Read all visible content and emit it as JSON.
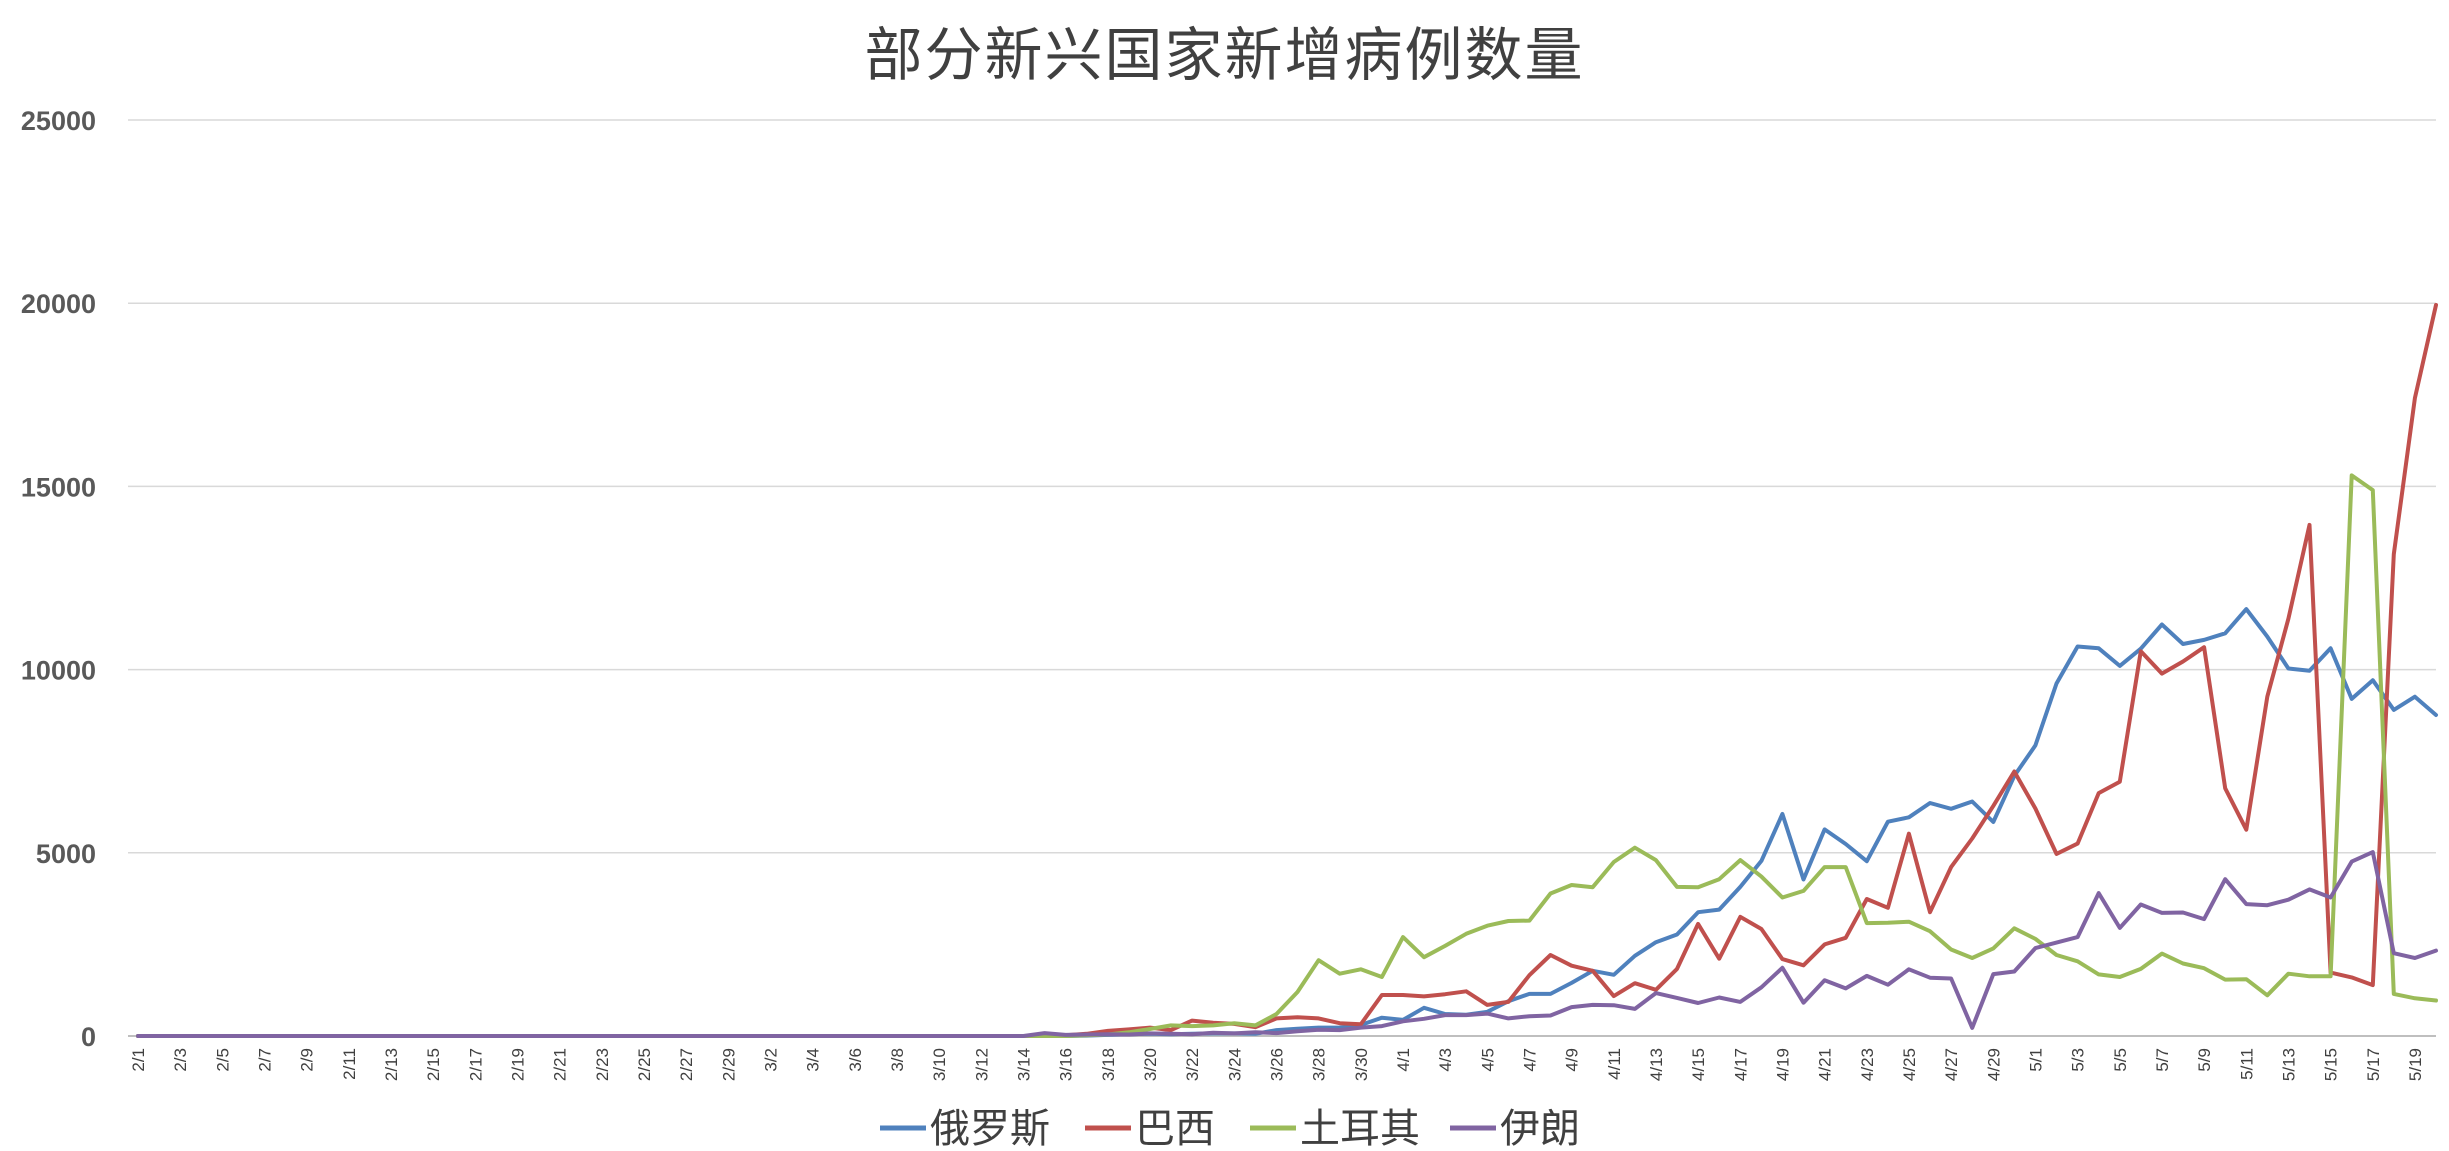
{
  "chart_data": {
    "type": "line",
    "title": "部分新兴国家新增病例数量",
    "xlabel": "",
    "ylabel": "",
    "ylim": [
      0,
      25000
    ],
    "yticks": [
      0,
      5000,
      10000,
      15000,
      20000,
      25000
    ],
    "grid": true,
    "legend": "bottom",
    "x": [
      "2/1",
      "2/2",
      "2/3",
      "2/4",
      "2/5",
      "2/6",
      "2/7",
      "2/8",
      "2/9",
      "2/10",
      "2/11",
      "2/12",
      "2/13",
      "2/14",
      "2/15",
      "2/16",
      "2/17",
      "2/18",
      "2/19",
      "2/20",
      "2/21",
      "2/22",
      "2/23",
      "2/24",
      "2/25",
      "2/26",
      "2/27",
      "2/28",
      "2/29",
      "3/1",
      "3/2",
      "3/3",
      "3/4",
      "3/5",
      "3/6",
      "3/7",
      "3/8",
      "3/9",
      "3/10",
      "3/11",
      "3/12",
      "3/13",
      "3/14",
      "3/15",
      "3/16",
      "3/17",
      "3/18",
      "3/19",
      "3/20",
      "3/21",
      "3/22",
      "3/23",
      "3/24",
      "3/25",
      "3/26",
      "3/27",
      "3/28",
      "3/29",
      "3/30",
      "3/31",
      "4/1",
      "4/2",
      "4/3",
      "4/4",
      "4/5",
      "4/6",
      "4/7",
      "4/8",
      "4/9",
      "4/10",
      "4/11",
      "4/12",
      "4/13",
      "4/14",
      "4/15",
      "4/16",
      "4/17",
      "4/18",
      "4/19",
      "4/20",
      "4/21",
      "4/22",
      "4/23",
      "4/24",
      "4/25",
      "4/26",
      "4/27",
      "4/28",
      "4/29",
      "4/30",
      "5/1",
      "5/2",
      "5/3",
      "5/4",
      "5/5",
      "5/6",
      "5/7",
      "5/8",
      "5/9",
      "5/10",
      "5/11",
      "5/12",
      "5/13",
      "5/14",
      "5/15",
      "5/16",
      "5/17",
      "5/18",
      "5/19",
      "5/20"
    ],
    "tick_labels": [
      "2/1",
      "2/3",
      "2/5",
      "2/7",
      "2/9",
      "2/11",
      "2/13",
      "2/15",
      "2/17",
      "2/19",
      "2/21",
      "2/23",
      "2/25",
      "2/27",
      "2/29",
      "3/2",
      "3/4",
      "3/6",
      "3/8",
      "3/10",
      "3/12",
      "3/14",
      "3/16",
      "3/18",
      "3/20",
      "3/22",
      "3/24",
      "3/26",
      "3/28",
      "3/30",
      "4/1",
      "4/3",
      "4/5",
      "4/7",
      "4/9",
      "4/11",
      "4/13",
      "4/15",
      "4/17",
      "4/19",
      "4/21",
      "4/23",
      "4/25",
      "4/27",
      "4/29",
      "5/1",
      "5/3",
      "5/5",
      "5/7",
      "5/9",
      "5/11",
      "5/13",
      "5/15",
      "5/17",
      "5/19"
    ],
    "series": [
      {
        "name": "俄罗斯",
        "color": "#4f81bd",
        "values": [
          0,
          0,
          0,
          0,
          0,
          0,
          0,
          0,
          0,
          0,
          0,
          0,
          0,
          0,
          0,
          0,
          0,
          0,
          0,
          0,
          0,
          0,
          0,
          0,
          0,
          0,
          0,
          0,
          0,
          0,
          0,
          0,
          0,
          0,
          0,
          0,
          0,
          0,
          0,
          0,
          0,
          0,
          0,
          0,
          0,
          10,
          30,
          50,
          60,
          50,
          60,
          70,
          70,
          60,
          160,
          200,
          230,
          230,
          300,
          500,
          440,
          770,
          600,
          580,
          660,
          950,
          1150,
          1150,
          1450,
          1780,
          1670,
          2190,
          2560,
          2770,
          3380,
          3450,
          4070,
          4780,
          6060,
          4270,
          5640,
          5240,
          4770,
          5850,
          5970,
          6360,
          6200,
          6400,
          5840,
          7100,
          7930,
          9620,
          10630,
          10580,
          10100,
          10570,
          11230,
          10700,
          10810,
          10990,
          11650,
          10900,
          10030,
          9970,
          10580,
          9200,
          9710,
          8900,
          9260,
          8760
        ]
      },
      {
        "name": "巴西",
        "color": "#c0504d",
        "values": [
          0,
          0,
          0,
          0,
          0,
          0,
          0,
          0,
          0,
          0,
          0,
          0,
          0,
          0,
          0,
          0,
          0,
          0,
          0,
          0,
          0,
          0,
          0,
          0,
          0,
          0,
          0,
          0,
          0,
          0,
          0,
          0,
          0,
          0,
          0,
          0,
          0,
          0,
          0,
          0,
          0,
          0,
          0,
          10,
          20,
          60,
          140,
          180,
          230,
          160,
          420,
          360,
          330,
          240,
          480,
          510,
          480,
          350,
          320,
          1120,
          1120,
          1080,
          1140,
          1220,
          850,
          930,
          1660,
          2210,
          1920,
          1780,
          1090,
          1440,
          1260,
          1830,
          3060,
          2110,
          3250,
          2920,
          2100,
          1930,
          2500,
          2680,
          3740,
          3500,
          5520,
          3380,
          4610,
          5390,
          6280,
          7220,
          6210,
          4970,
          5250,
          6630,
          6940,
          10500,
          9890,
          10220,
          10610,
          6760,
          5630,
          9260,
          11390,
          13950,
          1730,
          1600,
          1390,
          13150,
          17410,
          19950
        ]
      },
      {
        "name": "土耳其",
        "color": "#9bbb59",
        "values": [
          0,
          0,
          0,
          0,
          0,
          0,
          0,
          0,
          0,
          0,
          0,
          0,
          0,
          0,
          0,
          0,
          0,
          0,
          0,
          0,
          0,
          0,
          0,
          0,
          0,
          0,
          0,
          0,
          0,
          0,
          0,
          0,
          0,
          0,
          0,
          0,
          0,
          0,
          0,
          0,
          0,
          0,
          0,
          0,
          0,
          20,
          40,
          100,
          190,
          290,
          270,
          290,
          350,
          290,
          600,
          1200,
          2070,
          1700,
          1820,
          1610,
          2700,
          2150,
          2460,
          2790,
          3010,
          3140,
          3150,
          3890,
          4120,
          4060,
          4750,
          5140,
          4800,
          4070,
          4060,
          4280,
          4800,
          4350,
          3780,
          3960,
          4610,
          4610,
          3080,
          3090,
          3120,
          2860,
          2360,
          2130,
          2390,
          2940,
          2650,
          2210,
          2040,
          1680,
          1610,
          1830,
          2250,
          1980,
          1850,
          1540,
          1550,
          1110,
          1700,
          1630,
          1630,
          15300,
          14900,
          1150,
          1030,
          970
        ]
      },
      {
        "name": "伊朗",
        "color": "#8064a2",
        "values": [
          0,
          0,
          0,
          0,
          0,
          0,
          0,
          0,
          0,
          0,
          0,
          0,
          0,
          0,
          0,
          0,
          0,
          0,
          0,
          0,
          0,
          0,
          0,
          0,
          0,
          0,
          0,
          0,
          0,
          0,
          0,
          0,
          0,
          0,
          0,
          0,
          0,
          0,
          0,
          0,
          0,
          0,
          0,
          80,
          30,
          40,
          50,
          40,
          70,
          60,
          50,
          90,
          70,
          100,
          80,
          130,
          170,
          160,
          230,
          270,
          400,
          470,
          570,
          570,
          610,
          480,
          540,
          560,
          790,
          850,
          840,
          740,
          1170,
          1040,
          900,
          1050,
          930,
          1330,
          1860,
          910,
          1520,
          1300,
          1640,
          1400,
          1820,
          1590,
          1570,
          220,
          1690,
          1760,
          2400,
          2550,
          2700,
          3900,
          2950,
          3590,
          3360,
          3370,
          3190,
          4280,
          3600,
          3570,
          3720,
          4000,
          3780,
          4760,
          5020,
          2260,
          2130,
          2330
        ]
      }
    ]
  }
}
